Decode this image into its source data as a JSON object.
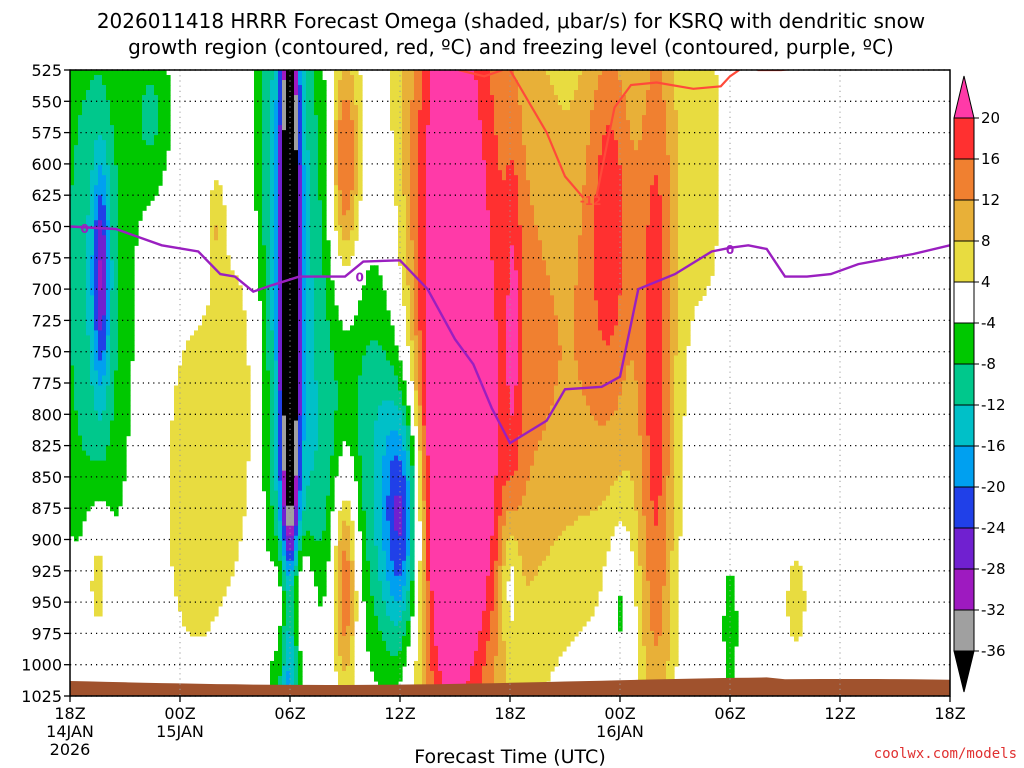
{
  "chart_data": {
    "type": "heatmap",
    "title_line1": "2026011418 HRRR Forecast Omega (shaded, μbar/s) for KSRQ with dendritic snow",
    "title_line2": "growth region (contoured, red, ºC) and freezing level (contoured, purple, ºC)",
    "xlabel": "Forecast Time (UTC)",
    "credit": "coolwx.com/models",
    "x_hours": [
      0,
      48
    ],
    "x_ticks": [
      {
        "h": 0,
        "label": "18Z",
        "label2": "14JAN",
        "label3": "2026"
      },
      {
        "h": 6,
        "label": "00Z",
        "label2": "15JAN",
        "label3": ""
      },
      {
        "h": 12,
        "label": "06Z",
        "label2": "",
        "label3": ""
      },
      {
        "h": 18,
        "label": "12Z",
        "label2": "",
        "label3": ""
      },
      {
        "h": 24,
        "label": "18Z",
        "label2": "",
        "label3": ""
      },
      {
        "h": 30,
        "label": "00Z",
        "label2": "16JAN",
        "label3": ""
      },
      {
        "h": 36,
        "label": "06Z",
        "label2": "",
        "label3": ""
      },
      {
        "h": 42,
        "label": "12Z",
        "label2": "",
        "label3": ""
      },
      {
        "h": 48,
        "label": "18Z",
        "label2": "",
        "label3": ""
      }
    ],
    "y_levels": [
      "525",
      "550",
      "575",
      "600",
      "625",
      "650",
      "675",
      "700",
      "725",
      "750",
      "775",
      "800",
      "825",
      "850",
      "875",
      "900",
      "925",
      "950",
      "975",
      "1000",
      "1025"
    ],
    "ylim_hpa": [
      525,
      1025
    ],
    "colorbar": {
      "labels": [
        "20",
        "16",
        "12",
        "8",
        "4",
        "-4",
        "-8",
        "-12",
        "-16",
        "-20",
        "-24",
        "-28",
        "-32",
        "-36"
      ],
      "colors": [
        "#ff3aa8",
        "#ff3030",
        "#f08030",
        "#e8b038",
        "#e8dc40",
        "#ffffff",
        "#00c800",
        "#00c88c",
        "#00c0c8",
        "#00a0f0",
        "#2040e8",
        "#7020d0",
        "#9e1ac0",
        "#a0a0a0",
        "#000000"
      ]
    },
    "omega_blobs": [
      {
        "h": 1.3,
        "p": 690,
        "dh": 1.5,
        "dp": 170,
        "v": -12
      },
      {
        "h": 1.7,
        "p": 690,
        "dh": 0.3,
        "dp": 60,
        "v": -17
      },
      {
        "h": 4.5,
        "p": 560,
        "dh": 0.8,
        "dp": 50,
        "v": -8
      },
      {
        "h": 1.5,
        "p": 930,
        "dh": 0.5,
        "dp": 40,
        "v": 10
      },
      {
        "h": 6.8,
        "p": 860,
        "dh": 1.4,
        "dp": 110,
        "v": 7
      },
      {
        "h": 8.0,
        "p": 650,
        "dh": 0.3,
        "dp": 30,
        "v": 6
      },
      {
        "h": 9.6,
        "p": 780,
        "dh": 1.2,
        "dp": 110,
        "v": 7
      },
      {
        "h": 12.0,
        "p": 700,
        "dh": 0.35,
        "dp": 220,
        "v": -38
      },
      {
        "h": 11.4,
        "p": 700,
        "dh": 1.0,
        "dp": 250,
        "v": -12
      },
      {
        "h": 13.0,
        "p": 650,
        "dh": 1.5,
        "dp": 150,
        "v": -9
      },
      {
        "h": 12.1,
        "p": 945,
        "dh": 0.7,
        "dp": 35,
        "v": 17
      },
      {
        "h": 15.0,
        "p": 600,
        "dh": 0.6,
        "dp": 70,
        "v": 20
      },
      {
        "h": 15.0,
        "p": 930,
        "dh": 0.5,
        "dp": 65,
        "v": 20
      },
      {
        "h": 13.8,
        "p": 860,
        "dh": 1.2,
        "dp": 90,
        "v": -7
      },
      {
        "h": 18.2,
        "p": 880,
        "dh": 0.7,
        "dp": 70,
        "v": -20
      },
      {
        "h": 17.8,
        "p": 900,
        "dh": 1.3,
        "dp": 100,
        "v": -11
      },
      {
        "h": 16.8,
        "p": 780,
        "dh": 1.3,
        "dp": 110,
        "v": -8
      },
      {
        "h": 20.5,
        "p": 660,
        "dh": 1.6,
        "dp": 320,
        "v": 18
      },
      {
        "h": 21.0,
        "p": 880,
        "dh": 1.6,
        "dp": 120,
        "v": 15
      },
      {
        "h": 22.5,
        "p": 700,
        "dh": 2.6,
        "dp": 300,
        "v": 8
      },
      {
        "h": 24.0,
        "p": 930,
        "dh": 0.4,
        "dp": 40,
        "v": -9
      },
      {
        "h": 24.2,
        "p": 720,
        "dh": 0.3,
        "dp": 100,
        "v": 6
      },
      {
        "h": 26.5,
        "p": 650,
        "dh": 4.5,
        "dp": 200,
        "v": 6
      },
      {
        "h": 27.5,
        "p": 800,
        "dh": 3.0,
        "dp": 120,
        "v": 5
      },
      {
        "h": 29.5,
        "p": 630,
        "dh": 1.0,
        "dp": 120,
        "v": 12
      },
      {
        "h": 32.0,
        "p": 800,
        "dh": 0.7,
        "dp": 260,
        "v": 14
      },
      {
        "h": 30.0,
        "p": 950,
        "dh": 0.5,
        "dp": 40,
        "v": -8
      },
      {
        "h": 36.0,
        "p": 560,
        "dh": 0.4,
        "dp": 90,
        "v": -8
      },
      {
        "h": 36.0,
        "p": 970,
        "dh": 0.3,
        "dp": 40,
        "v": -8
      },
      {
        "h": 35.0,
        "p": 580,
        "dh": 2.0,
        "dp": 110,
        "v": 5
      },
      {
        "h": 39.6,
        "p": 950,
        "dh": 0.5,
        "dp": 35,
        "v": 6
      }
    ],
    "freezing_level_0C": {
      "label": "0",
      "points": [
        [
          0,
          650
        ],
        [
          2.5,
          652
        ],
        [
          5,
          665
        ],
        [
          7,
          670
        ],
        [
          8.2,
          688
        ],
        [
          9,
          690
        ],
        [
          10,
          702
        ],
        [
          11,
          697
        ],
        [
          12.5,
          690
        ],
        [
          15,
          690
        ],
        [
          16,
          678
        ],
        [
          18,
          677
        ],
        [
          19.5,
          700
        ],
        [
          21,
          740
        ],
        [
          22,
          760
        ],
        [
          23,
          795
        ],
        [
          24,
          823
        ],
        [
          26,
          805
        ],
        [
          27,
          780
        ],
        [
          29,
          778
        ],
        [
          30,
          770
        ],
        [
          31,
          700
        ],
        [
          33,
          688
        ],
        [
          35,
          670
        ],
        [
          36,
          667
        ],
        [
          37,
          665
        ],
        [
          38,
          668
        ],
        [
          39,
          690
        ],
        [
          40.2,
          690
        ],
        [
          41.5,
          688
        ],
        [
          43,
          680
        ],
        [
          46,
          672
        ],
        [
          48,
          665
        ]
      ],
      "label_positions": [
        [
          0.8,
          651
        ],
        [
          15.8,
          690
        ],
        [
          36,
          668
        ]
      ]
    },
    "dendritic_region": {
      "label": "-12",
      "contours": [
        [
          [
            21.2,
            525
          ],
          [
            22.6,
            530
          ],
          [
            23.6,
            525
          ]
        ],
        [
          [
            24,
            525
          ],
          [
            26,
            575
          ],
          [
            27,
            610
          ],
          [
            28,
            627
          ]
        ],
        [
          [
            28.7,
            627
          ],
          [
            29,
            605
          ],
          [
            29.7,
            555
          ],
          [
            30.6,
            537
          ],
          [
            32,
            535
          ],
          [
            34,
            540
          ],
          [
            35.5,
            538
          ],
          [
            36,
            530
          ],
          [
            36.5,
            525
          ]
        ],
        [
          [
            37.5,
            525
          ],
          [
            38.8,
            525
          ],
          [
            39.6,
            524
          ]
        ]
      ],
      "label_positions": [
        [
          28.4,
          629
        ]
      ]
    },
    "terrain_surface_hpa": 1013
  }
}
